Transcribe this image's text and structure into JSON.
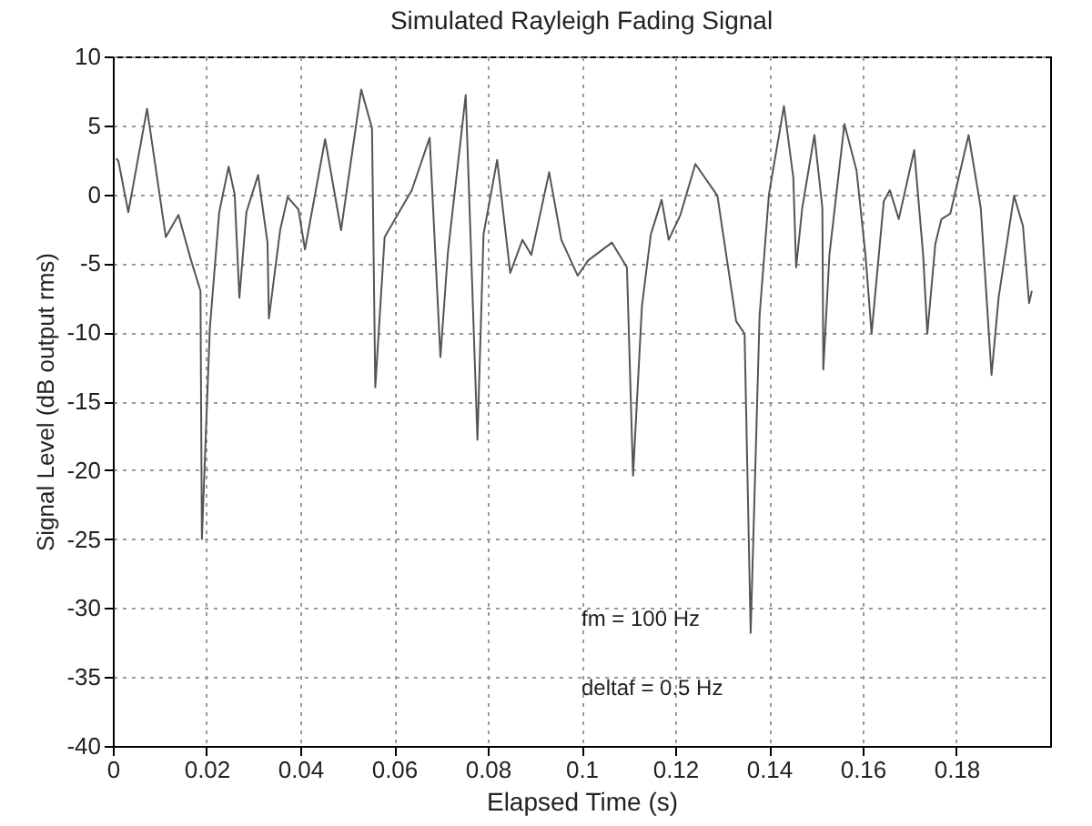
{
  "chart_data": {
    "type": "line",
    "title": "Simulated Rayleigh Fading Signal",
    "xlabel": "Elapsed Time (s)",
    "ylabel": "Signal Level (dB output rms)",
    "annotations": [
      "fm = 100 Hz",
      "deltaf = 0.5 Hz"
    ],
    "xlim": [
      0,
      0.2
    ],
    "xticks": [
      0,
      0.02,
      0.04,
      0.06,
      0.08,
      0.1,
      0.12,
      0.14,
      0.16,
      0.18
    ],
    "ylim": [
      -40,
      10
    ],
    "yticks": [
      -40,
      -35,
      -30,
      -25,
      -20,
      -15,
      -10,
      -5,
      0,
      5,
      10
    ],
    "grid": true,
    "line_style": "solid",
    "series": [
      {
        "color": "#555555",
        "x": [
          0.0007,
          0.0012,
          0.0033,
          0.0073,
          0.0113,
          0.014,
          0.0167,
          0.0187,
          0.019,
          0.0207,
          0.0227,
          0.0247,
          0.026,
          0.027,
          0.0285,
          0.031,
          0.033,
          0.0333,
          0.0357,
          0.0373,
          0.0396,
          0.041,
          0.0453,
          0.0487,
          0.053,
          0.0553,
          0.056,
          0.058,
          0.0638,
          0.0676,
          0.0699,
          0.0715,
          0.0753,
          0.0778,
          0.0791,
          0.082,
          0.0848,
          0.0874,
          0.0893,
          0.0931,
          0.0957,
          0.0992,
          0.1014,
          0.1065,
          0.1097,
          0.111,
          0.1129,
          0.1148,
          0.1171,
          0.1186,
          0.1211,
          0.1243,
          0.129,
          0.133,
          0.1348,
          0.1361,
          0.138,
          0.14,
          0.1432,
          0.1452,
          0.1458,
          0.1471,
          0.1497,
          0.1514,
          0.1516,
          0.1529,
          0.1561,
          0.1587,
          0.1606,
          0.1619,
          0.1632,
          0.1645,
          0.1658,
          0.1677,
          0.171,
          0.1729,
          0.1738,
          0.1755,
          0.1768,
          0.1787,
          0.1826,
          0.1852,
          0.1875,
          0.189,
          0.1923,
          0.1942,
          0.1955,
          0.1961
        ],
        "values": [
          2.6,
          2.4,
          -1.3,
          6.2,
          -3.1,
          -1.5,
          -4.8,
          -7,
          -25,
          -9.7,
          -1.3,
          2,
          0,
          -7.5,
          -1.3,
          1.4,
          -3.5,
          -9,
          -2.6,
          -0.2,
          -1.1,
          -4,
          4,
          -2.6,
          7.6,
          4.8,
          -14,
          -3.1,
          0.3,
          4.1,
          -11.8,
          -4.2,
          7.2,
          -17.8,
          -2.9,
          2.5,
          -5.7,
          -3.3,
          -4.4,
          1.6,
          -3.3,
          -5.9,
          -4.8,
          -3.5,
          -5.3,
          -20.4,
          -8.1,
          -2.9,
          -0.4,
          -3.3,
          -1.5,
          2.2,
          -0.1,
          -9.2,
          -10.1,
          -31.8,
          -8.8,
          0,
          6.4,
          1.2,
          -5.3,
          -1,
          4.3,
          -1,
          -12.7,
          -4.4,
          5.1,
          1.7,
          -4.4,
          -10.1,
          -5.3,
          -0.5,
          0.3,
          -1.8,
          3.2,
          -4.4,
          -10.1,
          -3.6,
          -1.8,
          -1.4,
          4.3,
          -1,
          -13.1,
          -7.5,
          -0.1,
          -2.3,
          -7.9,
          -7
        ]
      }
    ]
  }
}
